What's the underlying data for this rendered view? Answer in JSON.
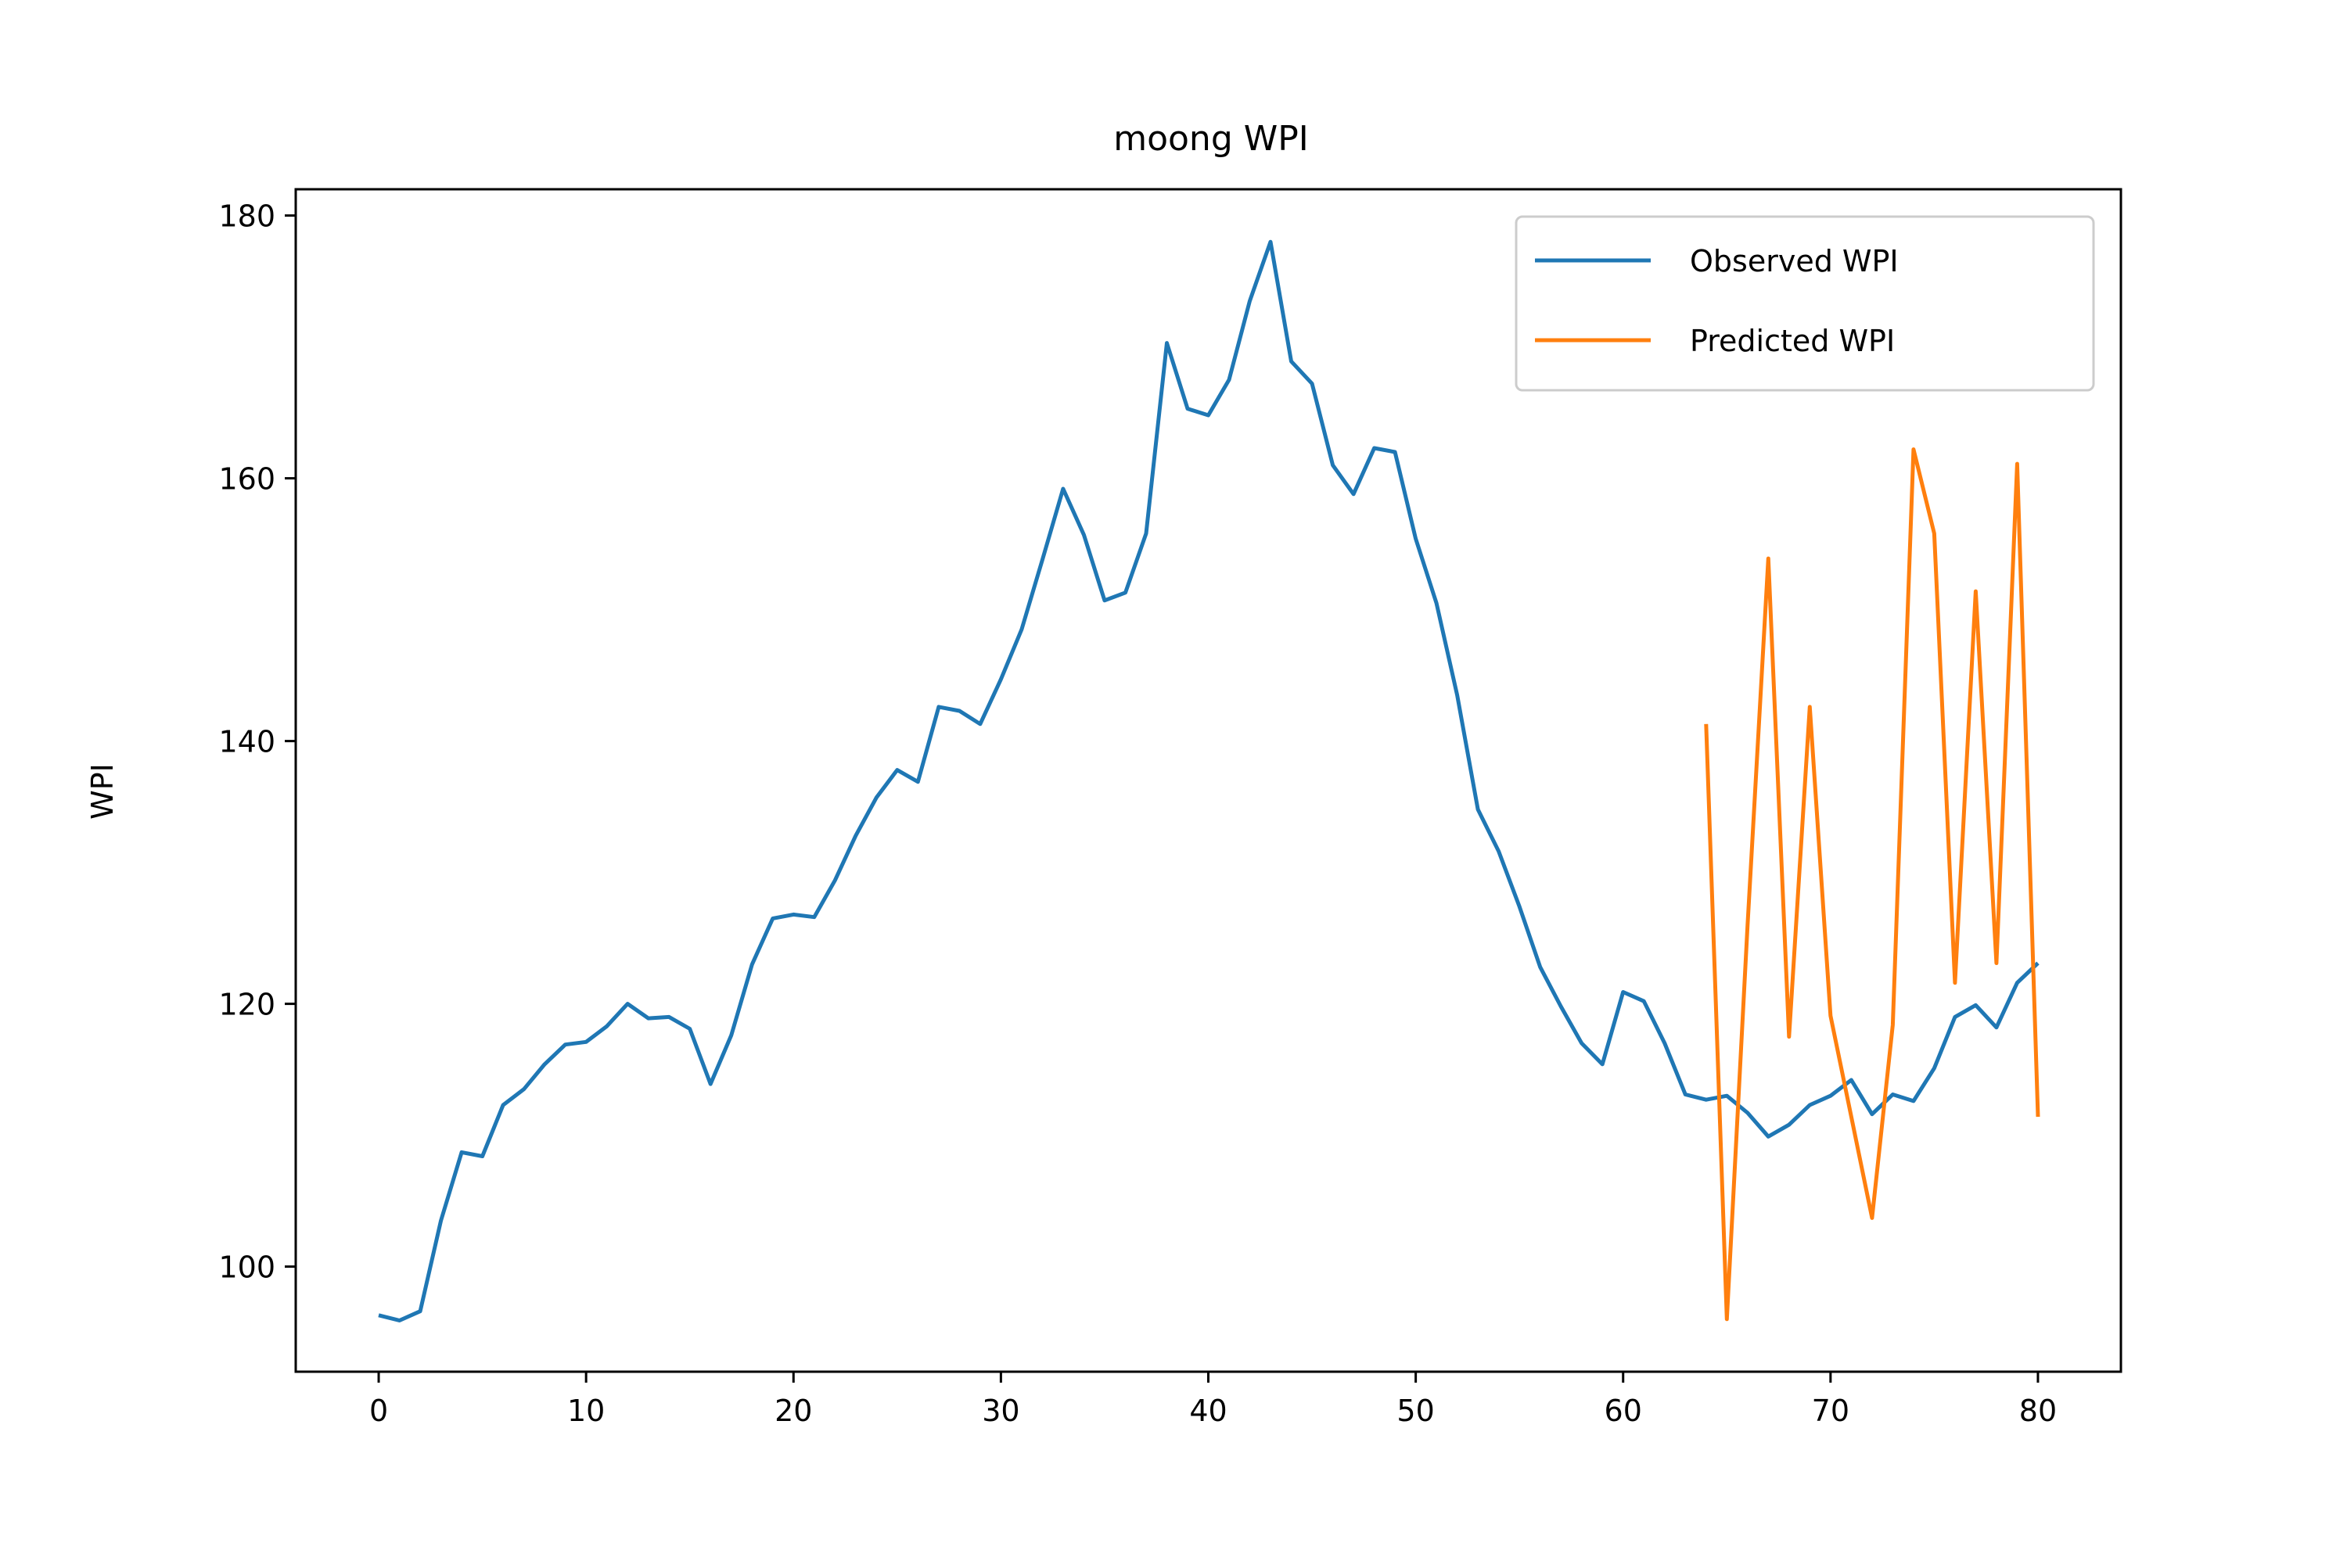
{
  "chart_data": {
    "type": "line",
    "title": "moong WPI",
    "xlabel": "",
    "ylabel": "WPI",
    "xlim": [
      -4,
      84
    ],
    "ylim": [
      92,
      182
    ],
    "x_ticks": [
      0,
      10,
      20,
      30,
      40,
      50,
      60,
      70,
      80
    ],
    "y_ticks": [
      100,
      120,
      140,
      160,
      180
    ],
    "grid": false,
    "legend_position": "top-right",
    "series": [
      {
        "name": "Observed WPI",
        "color": "#1f77b4",
        "x": [
          0,
          1,
          2,
          3,
          4,
          5,
          6,
          7,
          8,
          9,
          10,
          11,
          12,
          13,
          14,
          15,
          16,
          17,
          18,
          19,
          20,
          21,
          22,
          23,
          24,
          25,
          26,
          27,
          28,
          29,
          30,
          31,
          32,
          33,
          34,
          35,
          36,
          37,
          38,
          39,
          40,
          41,
          42,
          43,
          44,
          45,
          46,
          47,
          48,
          49,
          50,
          51,
          52,
          53,
          54,
          55,
          56,
          57,
          58,
          59,
          60,
          61,
          62,
          63,
          64,
          65,
          66,
          67,
          68,
          69,
          70,
          71,
          72,
          73,
          74,
          75,
          76,
          77,
          78,
          79,
          80
        ],
        "y": [
          96.3,
          95.9,
          96.6,
          103.5,
          108.7,
          108.4,
          112.3,
          113.5,
          115.4,
          116.9,
          117.1,
          118.3,
          120,
          118.9,
          119,
          118.1,
          113.9,
          117.6,
          123,
          126.5,
          126.8,
          126.6,
          129.4,
          132.8,
          135.7,
          137.8,
          136.9,
          142.6,
          142.3,
          141.3,
          144.7,
          148.5,
          153.8,
          159.2,
          155.7,
          150.7,
          151.3,
          155.8,
          170.3,
          165.3,
          164.8,
          167.5,
          173.5,
          178,
          168.9,
          167.2,
          161,
          158.8,
          162.3,
          162,
          155.4,
          150.5,
          143.5,
          134.8,
          131.6,
          127.4,
          122.8,
          119.8,
          117,
          115.4,
          120.9,
          120.2,
          117,
          113.1,
          112.7,
          113,
          111.7,
          109.9,
          110.8,
          112.3,
          113,
          114.2,
          111.6,
          113.1,
          112.6,
          115.1,
          119,
          119.9,
          118.2,
          121.6,
          123.1
        ]
      },
      {
        "name": "Predicted WPI",
        "color": "#ff7f0e",
        "x": [
          64,
          65,
          66,
          67,
          68,
          69,
          70,
          71,
          72,
          73,
          74,
          75,
          76,
          77,
          78,
          79,
          80
        ],
        "y": [
          141.3,
          96,
          126,
          153.9,
          117.5,
          142.6,
          119.1,
          111.4,
          103.7,
          118.4,
          162.2,
          155.8,
          121.6,
          151.4,
          123.1,
          161.1,
          111.4
        ]
      }
    ]
  }
}
